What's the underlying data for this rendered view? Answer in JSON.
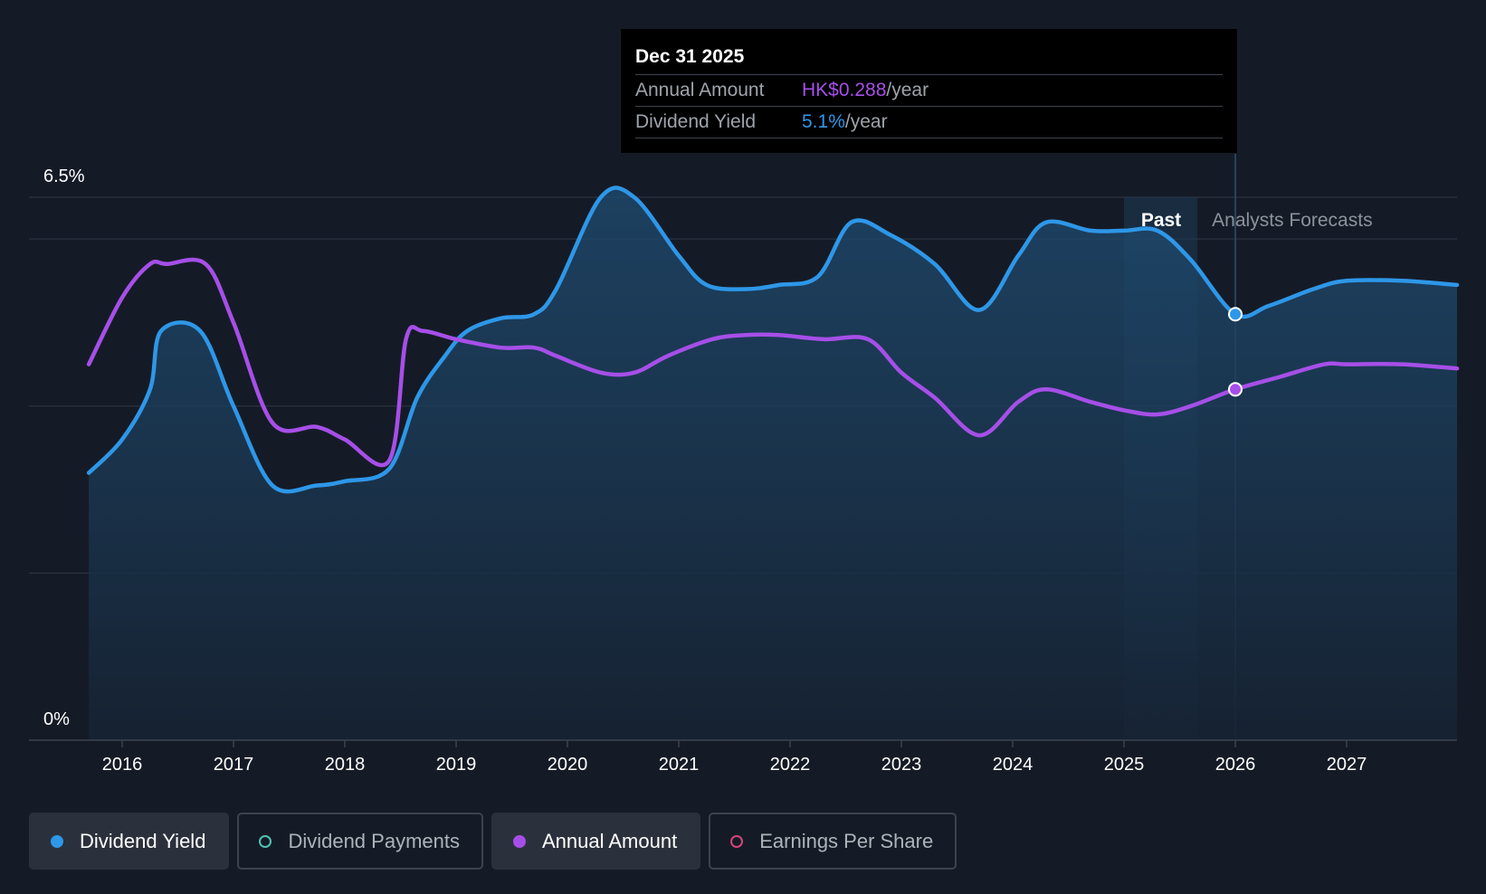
{
  "chart_data": {
    "type": "line",
    "x_ticks": [
      "2016",
      "2017",
      "2018",
      "2019",
      "2020",
      "2021",
      "2022",
      "2023",
      "2024",
      "2025",
      "2026",
      "2027"
    ],
    "y_axis": {
      "min_label": "0%",
      "max_label": "6.5%",
      "min": 0,
      "max": 6.5
    },
    "past_label": "Past",
    "forecast_label": "Analysts Forecasts",
    "forecast_start": 2025.66,
    "highlight_x": 2026.0,
    "x_range": [
      2015.0,
      2028.0
    ],
    "series": [
      {
        "name": "Dividend Yield",
        "color": "#2e97e8",
        "filled": true,
        "points": [
          [
            2015.7,
            3.2
          ],
          [
            2016.0,
            3.6
          ],
          [
            2016.25,
            4.2
          ],
          [
            2016.35,
            4.9
          ],
          [
            2016.7,
            4.9
          ],
          [
            2017.0,
            4.0
          ],
          [
            2017.35,
            3.05
          ],
          [
            2017.75,
            3.05
          ],
          [
            2018.0,
            3.1
          ],
          [
            2018.4,
            3.25
          ],
          [
            2018.65,
            4.1
          ],
          [
            2018.9,
            4.6
          ],
          [
            2019.1,
            4.9
          ],
          [
            2019.4,
            5.05
          ],
          [
            2019.7,
            5.1
          ],
          [
            2019.9,
            5.4
          ],
          [
            2020.3,
            6.5
          ],
          [
            2020.6,
            6.5
          ],
          [
            2021.0,
            5.8
          ],
          [
            2021.25,
            5.45
          ],
          [
            2021.6,
            5.4
          ],
          [
            2021.9,
            5.45
          ],
          [
            2022.25,
            5.55
          ],
          [
            2022.55,
            6.2
          ],
          [
            2022.9,
            6.05
          ],
          [
            2023.3,
            5.7
          ],
          [
            2023.7,
            5.15
          ],
          [
            2024.05,
            5.8
          ],
          [
            2024.3,
            6.2
          ],
          [
            2024.7,
            6.1
          ],
          [
            2025.0,
            6.1
          ],
          [
            2025.3,
            6.1
          ],
          [
            2025.6,
            5.75
          ],
          [
            2026.0,
            5.1
          ],
          [
            2026.3,
            5.2
          ],
          [
            2026.7,
            5.4
          ],
          [
            2027.0,
            5.5
          ],
          [
            2027.5,
            5.5
          ],
          [
            2028.0,
            5.45
          ]
        ]
      },
      {
        "name": "Annual Amount",
        "color": "#a64fe8",
        "filled": false,
        "points": [
          [
            2015.7,
            4.5
          ],
          [
            2016.0,
            5.3
          ],
          [
            2016.25,
            5.7
          ],
          [
            2016.4,
            5.7
          ],
          [
            2016.75,
            5.7
          ],
          [
            2017.0,
            5.0
          ],
          [
            2017.35,
            3.8
          ],
          [
            2017.75,
            3.75
          ],
          [
            2018.0,
            3.6
          ],
          [
            2018.4,
            3.35
          ],
          [
            2018.55,
            4.8
          ],
          [
            2018.7,
            4.9
          ],
          [
            2019.0,
            4.8
          ],
          [
            2019.4,
            4.7
          ],
          [
            2019.7,
            4.7
          ],
          [
            2019.9,
            4.6
          ],
          [
            2020.3,
            4.4
          ],
          [
            2020.6,
            4.4
          ],
          [
            2020.9,
            4.6
          ],
          [
            2021.3,
            4.8
          ],
          [
            2021.6,
            4.85
          ],
          [
            2021.9,
            4.85
          ],
          [
            2022.3,
            4.8
          ],
          [
            2022.7,
            4.8
          ],
          [
            2023.0,
            4.4
          ],
          [
            2023.3,
            4.1
          ],
          [
            2023.7,
            3.65
          ],
          [
            2024.05,
            4.05
          ],
          [
            2024.3,
            4.2
          ],
          [
            2024.7,
            4.05
          ],
          [
            2025.0,
            3.95
          ],
          [
            2025.3,
            3.9
          ],
          [
            2025.6,
            4.0
          ],
          [
            2026.0,
            4.2
          ],
          [
            2026.4,
            4.35
          ],
          [
            2026.8,
            4.5
          ],
          [
            2027.0,
            4.5
          ],
          [
            2027.5,
            4.5
          ],
          [
            2028.0,
            4.45
          ]
        ]
      }
    ]
  },
  "tooltip": {
    "date": "Dec 31 2025",
    "rows": [
      {
        "label": "Annual Amount",
        "value": "HK$0.288",
        "suffix": "/year"
      },
      {
        "label": "Dividend Yield",
        "value": "5.1%",
        "suffix": "/year"
      }
    ]
  },
  "legend": [
    {
      "label": "Dividend Yield",
      "active": true,
      "color": "#2e97e8"
    },
    {
      "label": "Dividend Payments",
      "active": false,
      "color": "#4fc2b2"
    },
    {
      "label": "Annual Amount",
      "active": true,
      "color": "#a64fe8"
    },
    {
      "label": "Earnings Per Share",
      "active": false,
      "color": "#d3457a"
    }
  ]
}
